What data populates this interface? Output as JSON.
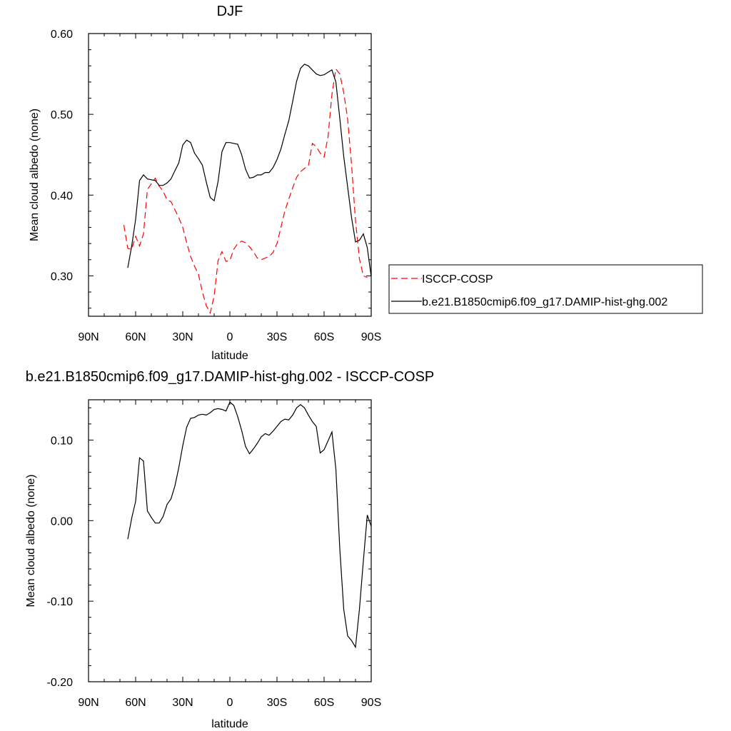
{
  "chart_data": [
    {
      "type": "line",
      "title": "DJF",
      "xlabel": "latitude",
      "ylabel": "Mean cloud albedo (none)",
      "xlim": [
        -90,
        90
      ],
      "ylim": [
        0.25,
        0.6
      ],
      "x_ticks": [
        -90,
        -60,
        -30,
        0,
        30,
        60,
        90
      ],
      "x_tick_labels": [
        "90N",
        "60N",
        "30N",
        "0",
        "30S",
        "60S",
        "90S"
      ],
      "y_ticks": [
        0.3,
        0.4,
        0.5,
        0.6
      ],
      "y_tick_labels": [
        "0.30",
        "0.40",
        "0.50",
        "0.60"
      ],
      "legend_position": "right",
      "series": [
        {
          "name": "ISCCP-COSP",
          "color": "#ff0000",
          "dash": "dashed",
          "x": [
            -67.5,
            -65,
            -62.5,
            -60,
            -57.5,
            -55,
            -52.5,
            -50,
            -47.5,
            -45,
            -42.5,
            -40,
            -37.5,
            -35,
            -32.5,
            -30,
            -27.5,
            -25,
            -22.5,
            -20,
            -17.5,
            -15,
            -12.5,
            -10,
            -7.5,
            -5,
            -2.5,
            0,
            2.5,
            5,
            7.5,
            10,
            12.5,
            15,
            17.5,
            20,
            22.5,
            25,
            27.5,
            30,
            32.5,
            35,
            37.5,
            40,
            42.5,
            45,
            47.5,
            50,
            52.5,
            55,
            57.5,
            60,
            62.5,
            65,
            67.5,
            70,
            72.5,
            75,
            77.5,
            80,
            82.5,
            85,
            87.5
          ],
          "y": [
            0.363,
            0.334,
            0.333,
            0.349,
            0.337,
            0.352,
            0.407,
            0.414,
            0.421,
            0.411,
            0.405,
            0.394,
            0.392,
            0.382,
            0.372,
            0.36,
            0.341,
            0.324,
            0.312,
            0.302,
            0.28,
            0.263,
            0.254,
            0.275,
            0.319,
            0.33,
            0.318,
            0.319,
            0.333,
            0.34,
            0.343,
            0.341,
            0.336,
            0.33,
            0.322,
            0.32,
            0.322,
            0.324,
            0.329,
            0.34,
            0.36,
            0.38,
            0.395,
            0.409,
            0.422,
            0.429,
            0.433,
            0.436,
            0.464,
            0.46,
            0.452,
            0.447,
            0.472,
            0.525,
            0.556,
            0.55,
            0.527,
            0.494,
            0.437,
            0.368,
            0.321,
            0.3,
            0.298
          ]
        },
        {
          "name": "b.e21.B1850cmip6.f09_g17.DAMIP-hist-ghg.002",
          "color": "#000000",
          "dash": "solid",
          "x": [
            -65,
            -62.5,
            -60,
            -57.5,
            -55,
            -52.5,
            -50,
            -47.5,
            -45,
            -42.5,
            -40,
            -37.5,
            -35,
            -32.5,
            -30,
            -27.5,
            -25,
            -22.5,
            -20,
            -17.5,
            -15,
            -12.5,
            -10,
            -7.5,
            -5,
            -2.5,
            0,
            2.5,
            5,
            7.5,
            10,
            12.5,
            15,
            17.5,
            20,
            22.5,
            25,
            27.5,
            30,
            32.5,
            35,
            37.5,
            40,
            42.5,
            45,
            47.5,
            50,
            52.5,
            55,
            57.5,
            60,
            62.5,
            65,
            67.5,
            70,
            72.5,
            75,
            77.5,
            80,
            82.5,
            85,
            87.5,
            90
          ],
          "y": [
            0.31,
            0.337,
            0.37,
            0.418,
            0.425,
            0.42,
            0.419,
            0.418,
            0.412,
            0.412,
            0.415,
            0.42,
            0.43,
            0.44,
            0.462,
            0.468,
            0.465,
            0.452,
            0.445,
            0.437,
            0.416,
            0.397,
            0.393,
            0.417,
            0.454,
            0.465,
            0.465,
            0.464,
            0.463,
            0.45,
            0.432,
            0.421,
            0.422,
            0.425,
            0.425,
            0.428,
            0.428,
            0.434,
            0.444,
            0.457,
            0.475,
            0.492,
            0.516,
            0.541,
            0.557,
            0.562,
            0.56,
            0.555,
            0.55,
            0.548,
            0.549,
            0.552,
            0.555,
            0.54,
            0.495,
            0.448,
            0.41,
            0.372,
            0.342,
            0.344,
            0.352,
            0.335,
            0.299
          ]
        }
      ]
    },
    {
      "type": "line",
      "title": "b.e21.B1850cmip6.f09_g17.DAMIP-hist-ghg.002 - ISCCP-COSP",
      "xlabel": "latitude",
      "ylabel": "Mean cloud albedo (none)",
      "xlim": [
        -90,
        90
      ],
      "ylim": [
        -0.2,
        0.15
      ],
      "x_ticks": [
        -90,
        -60,
        -30,
        0,
        30,
        60,
        90
      ],
      "x_tick_labels": [
        "90N",
        "60N",
        "30N",
        "0",
        "30S",
        "60S",
        "90S"
      ],
      "y_ticks": [
        -0.2,
        -0.1,
        0.0,
        0.1
      ],
      "y_tick_labels": [
        "-0.20",
        "-0.10",
        "0.00",
        "0.10"
      ],
      "series": [
        {
          "color": "#000000",
          "dash": "solid",
          "x": [
            -65,
            -62.5,
            -60,
            -57.5,
            -55,
            -52.5,
            -50,
            -47.5,
            -45,
            -42.5,
            -40,
            -37.5,
            -35,
            -32.5,
            -30,
            -27.5,
            -25,
            -22.5,
            -20,
            -17.5,
            -15,
            -12.5,
            -10,
            -7.5,
            -5,
            -2.5,
            0,
            2.5,
            5,
            7.5,
            10,
            12.5,
            15,
            17.5,
            20,
            22.5,
            25,
            27.5,
            30,
            32.5,
            35,
            37.5,
            40,
            42.5,
            45,
            47.5,
            50,
            52.5,
            55,
            57.5,
            60,
            62.5,
            65,
            67.5,
            70,
            72.5,
            75,
            77.5,
            80,
            82.5,
            85,
            87.5,
            90
          ],
          "y": [
            -0.023,
            0.003,
            0.024,
            0.078,
            0.074,
            0.012,
            0.004,
            -0.003,
            -0.003,
            0.005,
            0.02,
            0.027,
            0.043,
            0.066,
            0.093,
            0.116,
            0.127,
            0.128,
            0.131,
            0.132,
            0.131,
            0.134,
            0.138,
            0.139,
            0.138,
            0.136,
            0.147,
            0.143,
            0.129,
            0.112,
            0.092,
            0.083,
            0.089,
            0.096,
            0.104,
            0.108,
            0.106,
            0.111,
            0.117,
            0.123,
            0.126,
            0.125,
            0.131,
            0.14,
            0.144,
            0.14,
            0.131,
            0.123,
            0.117,
            0.084,
            0.088,
            0.099,
            0.11,
            0.064,
            -0.035,
            -0.11,
            -0.143,
            -0.149,
            -0.157,
            -0.11,
            -0.05,
            0.007,
            -0.007
          ]
        }
      ]
    }
  ]
}
